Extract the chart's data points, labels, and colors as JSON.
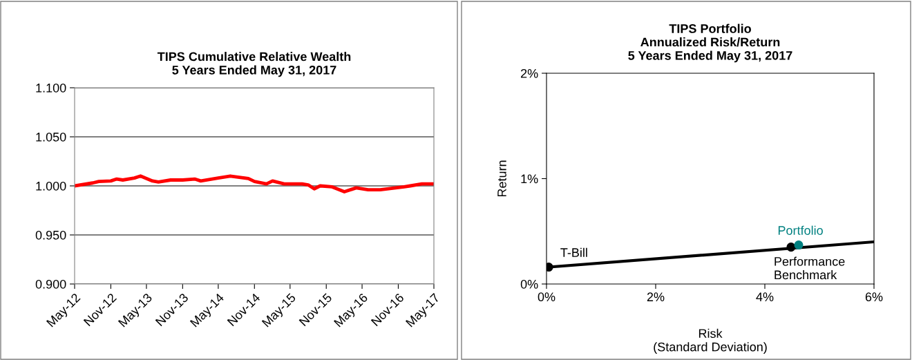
{
  "chart_data": [
    {
      "type": "line",
      "title": "TIPS Cumulative Relative Wealth\n5 Years Ended May 31, 2017",
      "x": [
        "2012-05",
        "2012-08",
        "2012-09",
        "2012-11",
        "2012-12",
        "2013-01",
        "2013-03",
        "2013-04",
        "2013-06",
        "2013-07",
        "2013-09",
        "2013-11",
        "2014-01",
        "2014-02",
        "2014-05",
        "2014-07",
        "2014-10",
        "2014-11",
        "2015-01",
        "2015-02",
        "2015-04",
        "2015-07",
        "2015-08",
        "2015-09",
        "2015-10",
        "2015-12",
        "2016-02",
        "2016-04",
        "2016-06",
        "2016-08",
        "2016-12",
        "2017-01",
        "2017-03",
        "2017-05"
      ],
      "series": [
        {
          "color": "#ff0000",
          "values": [
            1.0,
            1.003,
            1.0045,
            1.005,
            1.007,
            1.006,
            1.008,
            1.01,
            1.005,
            1.004,
            1.006,
            1.006,
            1.007,
            1.005,
            1.008,
            1.01,
            1.0075,
            1.0045,
            1.002,
            1.005,
            1.002,
            1.002,
            1.001,
            0.997,
            1.0,
            0.999,
            0.994,
            0.998,
            0.996,
            0.996,
            0.999,
            1.0,
            1.002,
            1.002
          ]
        }
      ],
      "xlim": [
        "2012-05",
        "2017-05"
      ],
      "xticks": [
        {
          "value": "2012-05",
          "label": "May-12"
        },
        {
          "value": "2012-11",
          "label": "Nov-12"
        },
        {
          "value": "2013-05",
          "label": "May-13"
        },
        {
          "value": "2013-11",
          "label": "Nov-13"
        },
        {
          "value": "2014-05",
          "label": "May-14"
        },
        {
          "value": "2014-11",
          "label": "Nov-14"
        },
        {
          "value": "2015-05",
          "label": "May-15"
        },
        {
          "value": "2015-11",
          "label": "Nov-15"
        },
        {
          "value": "2016-05",
          "label": "May-16"
        },
        {
          "value": "2016-11",
          "label": "Nov-16"
        },
        {
          "value": "2017-05",
          "label": "May-17"
        }
      ],
      "ylim": [
        0.9,
        1.1
      ],
      "yticks": [
        {
          "value": 0.9,
          "label": "0.900"
        },
        {
          "value": 0.95,
          "label": "0.950"
        },
        {
          "value": 1.0,
          "label": "1.000"
        },
        {
          "value": 1.05,
          "label": "1.050"
        },
        {
          "value": 1.1,
          "label": "1.100"
        }
      ],
      "grid": "y",
      "legend": false,
      "marker": "none",
      "line_style": "solid"
    },
    {
      "type": "scatter",
      "title": "TIPS Portfolio\nAnnualized Risk/Return\n5 Years Ended May 31, 2017",
      "xlabel": "Risk\n(Standard Deviation)",
      "ylabel": "Return",
      "series": [
        {
          "type": "line",
          "marker": "none",
          "color": "#000000",
          "x": [
            0.04,
            6
          ],
          "values": [
            0.16,
            0.4
          ]
        },
        {
          "name": "T-Bill",
          "color": "#000000",
          "x": [
            0.04
          ],
          "values": [
            0.16
          ]
        },
        {
          "name": "Performance\nBenchmark",
          "color": "#000000",
          "x": [
            4.48
          ],
          "values": [
            0.35
          ]
        },
        {
          "name": "Portfolio",
          "color": "#008080",
          "x": [
            4.62
          ],
          "values": [
            0.37
          ]
        }
      ],
      "xlim": [
        0,
        6
      ],
      "xticks": [
        {
          "value": 0,
          "label": "0%"
        },
        {
          "value": 2,
          "label": "2%"
        },
        {
          "value": 4,
          "label": "4%"
        },
        {
          "value": 6,
          "label": "6%"
        }
      ],
      "ylim": [
        0,
        2
      ],
      "yticks": [
        {
          "value": 0,
          "label": "0%"
        },
        {
          "value": 1,
          "label": "1%"
        },
        {
          "value": 2,
          "label": "2%"
        }
      ],
      "grid": false,
      "legend": false,
      "marker": "circle"
    }
  ]
}
